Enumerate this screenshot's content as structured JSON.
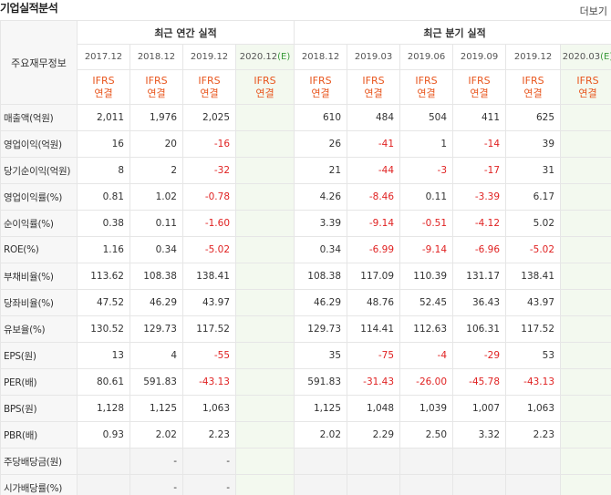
{
  "header": {
    "title": "기업실적분석",
    "more": "더보기"
  },
  "table": {
    "corner": "주요재무정보",
    "groups": [
      {
        "label": "최근 연간 실적",
        "span": 4
      },
      {
        "label": "최근 분기 실적",
        "span": 6
      }
    ],
    "columns": [
      {
        "period": "2017.12",
        "ifrs": "IFRS",
        "consolidated": "연결"
      },
      {
        "period": "2018.12",
        "ifrs": "IFRS",
        "consolidated": "연결"
      },
      {
        "period": "2019.12",
        "ifrs": "IFRS",
        "consolidated": "연결"
      },
      {
        "period": "2020.12",
        "mark": "(E)",
        "ifrs": "IFRS",
        "consolidated": "연결"
      },
      {
        "period": "2018.12",
        "ifrs": "IFRS",
        "consolidated": "연결"
      },
      {
        "period": "2019.03",
        "ifrs": "IFRS",
        "consolidated": "연결"
      },
      {
        "period": "2019.06",
        "ifrs": "IFRS",
        "consolidated": "연결"
      },
      {
        "period": "2019.09",
        "ifrs": "IFRS",
        "consolidated": "연결"
      },
      {
        "period": "2019.12",
        "ifrs": "IFRS",
        "consolidated": "연결"
      },
      {
        "period": "2020.03",
        "mark": "(E)",
        "ifrs": "IFRS",
        "consolidated": "연결"
      }
    ],
    "rows": [
      {
        "label": "매출액(억원)",
        "values": [
          "2,011",
          "1,976",
          "2,025",
          null,
          "610",
          "484",
          "504",
          "411",
          "625",
          null
        ]
      },
      {
        "label": "영업이익(억원)",
        "values": [
          "16",
          "20",
          "-16",
          null,
          "26",
          "-41",
          "1",
          "-14",
          "39",
          null
        ]
      },
      {
        "label": "당기순이익(억원)",
        "values": [
          "8",
          "2",
          "-32",
          null,
          "21",
          "-44",
          "-3",
          "-17",
          "31",
          null
        ]
      },
      {
        "label": "영업이익률(%)",
        "values": [
          "0.81",
          "1.02",
          "-0.78",
          null,
          "4.26",
          "-8.46",
          "0.11",
          "-3.39",
          "6.17",
          null
        ]
      },
      {
        "label": "순이익률(%)",
        "values": [
          "0.38",
          "0.11",
          "-1.60",
          null,
          "3.39",
          "-9.14",
          "-0.51",
          "-4.12",
          "5.02",
          null
        ]
      },
      {
        "label": "ROE(%)",
        "values": [
          "1.16",
          "0.34",
          "-5.02",
          null,
          "0.34",
          "-6.99",
          "-9.14",
          "-6.96",
          "-5.02",
          null
        ]
      },
      {
        "label": "부채비율(%)",
        "values": [
          "113.62",
          "108.38",
          "138.41",
          null,
          "108.38",
          "117.09",
          "110.39",
          "131.17",
          "138.41",
          null
        ]
      },
      {
        "label": "당좌비율(%)",
        "values": [
          "47.52",
          "46.29",
          "43.97",
          null,
          "46.29",
          "48.76",
          "52.45",
          "36.43",
          "43.97",
          null
        ]
      },
      {
        "label": "유보율(%)",
        "values": [
          "130.52",
          "129.73",
          "117.52",
          null,
          "129.73",
          "114.41",
          "112.63",
          "106.31",
          "117.52",
          null
        ]
      },
      {
        "label": "EPS(원)",
        "values": [
          "13",
          "4",
          "-55",
          null,
          "35",
          "-75",
          "-4",
          "-29",
          "53",
          null
        ]
      },
      {
        "label": "PER(배)",
        "values": [
          "80.61",
          "591.83",
          "-43.13",
          null,
          "591.83",
          "-31.43",
          "-26.00",
          "-45.78",
          "-43.13",
          null
        ]
      },
      {
        "label": "BPS(원)",
        "values": [
          "1,128",
          "1,125",
          "1,063",
          null,
          "1,125",
          "1,048",
          "1,039",
          "1,007",
          "1,063",
          null
        ]
      },
      {
        "label": "PBR(배)",
        "values": [
          "0.93",
          "2.02",
          "2.23",
          null,
          "2.02",
          "2.29",
          "2.50",
          "3.32",
          "2.23",
          null
        ]
      },
      {
        "label": "주당배당금(원)",
        "values": [
          null,
          "-",
          "-",
          null,
          null,
          null,
          null,
          null,
          null,
          null
        ]
      },
      {
        "label": "시가배당률(%)",
        "values": [
          null,
          "-",
          "-",
          null,
          null,
          null,
          null,
          null,
          null,
          null
        ]
      }
    ]
  }
}
